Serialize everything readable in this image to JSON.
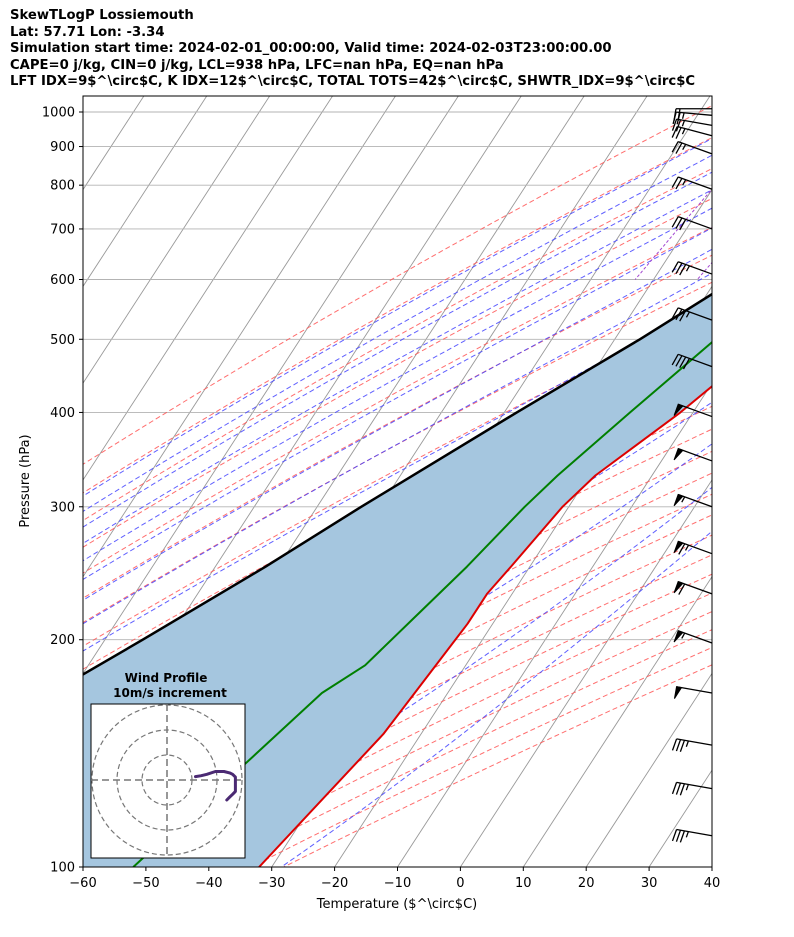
{
  "header": {
    "line1": "SkewTLogP Lossiemouth",
    "line2": "Lat: 57.71   Lon: -3.34",
    "line3": "Simulation start time: 2024-02-01_00:00:00, Valid time: 2024-02-03T23:00:00.00",
    "line4": "CAPE=0 j/kg, CIN=0 j/kg, LCL=938 hPa, LFC=nan hPa, EQ=nan hPa",
    "line5": "LFT IDX=9$^\\circ$C, K IDX=12$^\\circ$C, TOTAL TOTS=42$^\\circ$C, SHWTR_IDX=9$^\\circ$C"
  },
  "chart_data": {
    "type": "line",
    "xlabel": "Temperature ($^\\circ$C)",
    "ylabel": "Pressure (hPa)",
    "xlim": [
      -60,
      40
    ],
    "ylim": [
      1050,
      100
    ],
    "y_scale": "log",
    "skew": true,
    "grid": true,
    "x_ticks": [
      -60,
      -50,
      -40,
      -30,
      -20,
      -10,
      0,
      10,
      20,
      30,
      40
    ],
    "y_ticks": [
      100,
      200,
      300,
      400,
      500,
      600,
      700,
      800,
      900,
      1000
    ],
    "colors": {
      "temperature": "#dd0000",
      "dewpoint": "#007f00",
      "parcel": "#000000",
      "shading": "#a5c6df",
      "dry_adiabats": "#ff5555",
      "moist_adiabats": "#4444ff",
      "mixing_ratio": "#9933cc",
      "isotherms": "#999999"
    },
    "series": [
      {
        "key": "temperature",
        "points": [
          [
            7.5,
            1000
          ],
          [
            4.5,
            940
          ],
          [
            2.5,
            870
          ],
          [
            0,
            800
          ],
          [
            -2,
            700
          ],
          [
            -3,
            600
          ],
          [
            -5.5,
            500
          ],
          [
            -12,
            400
          ],
          [
            -19,
            330
          ],
          [
            -21,
            300
          ],
          [
            -23,
            250
          ],
          [
            -24,
            230
          ],
          [
            -24,
            210
          ],
          [
            -26,
            150
          ],
          [
            -32,
            100
          ]
        ]
      },
      {
        "key": "dewpoint",
        "points": [
          [
            3.5,
            1000
          ],
          [
            2,
            940
          ],
          [
            -2,
            880
          ],
          [
            -5,
            800
          ],
          [
            -7,
            700
          ],
          [
            -10,
            600
          ],
          [
            -14,
            500
          ],
          [
            -20,
            400
          ],
          [
            -25,
            330
          ],
          [
            -27,
            300
          ],
          [
            -30,
            250
          ],
          [
            -33,
            215
          ],
          [
            -36,
            185
          ],
          [
            -40,
            170
          ],
          [
            -52,
            100
          ]
        ]
      },
      {
        "key": "parcel",
        "points": [
          [
            7.5,
            1000
          ],
          [
            4.0,
            938
          ],
          [
            2.5,
            900
          ],
          [
            -3,
            800
          ],
          [
            -9,
            700
          ],
          [
            -17,
            600
          ],
          [
            -26,
            500
          ],
          [
            -38,
            400
          ],
          [
            -53,
            300
          ],
          [
            -62,
            250
          ],
          [
            -74,
            200
          ],
          [
            -90,
            150
          ],
          [
            -107,
            100
          ]
        ]
      }
    ],
    "wind_barbs": [
      {
        "pressure": 110,
        "direction_deg": 280,
        "speed_kt": 35
      },
      {
        "pressure": 127,
        "direction_deg": 280,
        "speed_kt": 35
      },
      {
        "pressure": 145,
        "direction_deg": 280,
        "speed_kt": 35
      },
      {
        "pressure": 170,
        "direction_deg": 280,
        "speed_kt": 50
      },
      {
        "pressure": 198,
        "direction_deg": 290,
        "speed_kt": 55
      },
      {
        "pressure": 230,
        "direction_deg": 290,
        "speed_kt": 60
      },
      {
        "pressure": 260,
        "direction_deg": 290,
        "speed_kt": 65
      },
      {
        "pressure": 300,
        "direction_deg": 290,
        "speed_kt": 55
      },
      {
        "pressure": 345,
        "direction_deg": 290,
        "speed_kt": 50
      },
      {
        "pressure": 395,
        "direction_deg": 290,
        "speed_kt": 50
      },
      {
        "pressure": 460,
        "direction_deg": 290,
        "speed_kt": 40
      },
      {
        "pressure": 530,
        "direction_deg": 290,
        "speed_kt": 35
      },
      {
        "pressure": 610,
        "direction_deg": 290,
        "speed_kt": 35
      },
      {
        "pressure": 700,
        "direction_deg": 290,
        "speed_kt": 30
      },
      {
        "pressure": 790,
        "direction_deg": 290,
        "speed_kt": 25
      },
      {
        "pressure": 880,
        "direction_deg": 290,
        "speed_kt": 25
      },
      {
        "pressure": 930,
        "direction_deg": 285,
        "speed_kt": 25
      },
      {
        "pressure": 960,
        "direction_deg": 280,
        "speed_kt": 25
      },
      {
        "pressure": 990,
        "direction_deg": 275,
        "speed_kt": 25
      },
      {
        "pressure": 1010,
        "direction_deg": 270,
        "speed_kt": 20
      }
    ],
    "inset": {
      "title": "Wind Profile",
      "subtitle": "10m/s increment",
      "rings_ms": [
        10,
        20,
        30
      ],
      "hodograph_uv": [
        [
          21,
          -7
        ],
        [
          22,
          -6
        ],
        [
          23,
          -5
        ],
        [
          24,
          -4
        ],
        [
          24,
          -1
        ],
        [
          24,
          0
        ],
        [
          24,
          1
        ],
        [
          23,
          2
        ],
        [
          22,
          2.5
        ],
        [
          20,
          3
        ],
        [
          17,
          3
        ],
        [
          14,
          2
        ],
        [
          12,
          1.5
        ],
        [
          10,
          1.2
        ]
      ]
    }
  }
}
